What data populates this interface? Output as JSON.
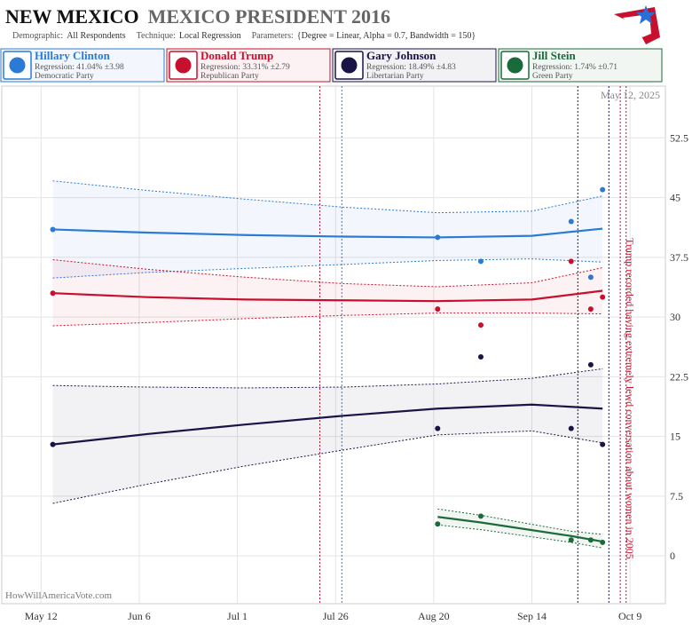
{
  "header": {
    "state": "NEW MEXICO",
    "title": "MEXICO PRESIDENT 2016",
    "params": [
      {
        "label": "Demographic:",
        "value": "All Respondents"
      },
      {
        "label": "Technique:",
        "value": "Local Regression"
      },
      {
        "label": "Parameters:",
        "value": "{Degree = Linear, Alpha = 0.7, Bandwidth = 150}"
      }
    ]
  },
  "chart_data": {
    "type": "scatter",
    "date_label": "May 12, 2025",
    "source": "HowWillAmericaVote.com",
    "annotation": "Trump recorded having extremely lewd conversation about women in 2005",
    "xlim": [
      123,
      292
    ],
    "xticks": [
      {
        "value": 133,
        "label": "May 12"
      },
      {
        "value": 158,
        "label": "Jun 6"
      },
      {
        "value": 183,
        "label": "Jul 1"
      },
      {
        "value": 208,
        "label": "Jul 26"
      },
      {
        "value": 233,
        "label": "Aug 20"
      },
      {
        "value": 258,
        "label": "Sep 14"
      },
      {
        "value": 283,
        "label": "Oct 9"
      }
    ],
    "ylim": [
      -6,
      59
    ],
    "yticks": [
      0,
      7.5,
      15,
      22.5,
      30,
      37.5,
      45,
      52.5
    ],
    "grid": true,
    "events": [
      {
        "x": 204,
        "color": "#c8102e"
      },
      {
        "x": 209.6,
        "color": "#2b7bd6"
      },
      {
        "x": 269.7,
        "color": "#1a1446"
      },
      {
        "x": 277.6,
        "color": "#1a1446"
      },
      {
        "x": 280.5,
        "color": "#c8102e"
      },
      {
        "x": 282,
        "color": "#c8102e"
      }
    ],
    "series": [
      {
        "name": "Hillary Clinton",
        "detail": "Regression: 41.04% ±3.98",
        "party": "Democratic Party",
        "color": "#2b7bd6",
        "x": [
          136,
          234,
          245,
          268,
          273,
          276
        ],
        "values": [
          41,
          40,
          37,
          42,
          35,
          46
        ],
        "trend_x": [
          136,
          160,
          185,
          210,
          234,
          258,
          276
        ],
        "trend": [
          41,
          40.6,
          40.3,
          40.1,
          40,
          40.2,
          41.1
        ],
        "trend_upper": [
          47.1,
          45.9,
          44.8,
          43.8,
          43.1,
          43.3,
          45.2
        ],
        "trend_lower": [
          34.9,
          35.6,
          36.1,
          36.6,
          37.1,
          37.3,
          36.9
        ]
      },
      {
        "name": "Donald Trump",
        "detail": "Regression: 33.31% ±2.79",
        "party": "Republican Party",
        "color": "#c8102e",
        "x": [
          136,
          234,
          245,
          268,
          273,
          276
        ],
        "values": [
          33,
          31,
          29,
          37,
          31,
          32.5
        ],
        "trend_x": [
          136,
          160,
          185,
          210,
          234,
          258,
          276
        ],
        "trend": [
          33,
          32.5,
          32.2,
          32.1,
          32,
          32.2,
          33.3
        ],
        "trend_upper": [
          37.2,
          36,
          35,
          34.2,
          33.8,
          34.3,
          36.2
        ],
        "trend_lower": [
          28.9,
          29.3,
          29.8,
          30.2,
          30.5,
          30.5,
          30.4
        ]
      },
      {
        "name": "Gary Johnson",
        "detail": "Regression: 18.49% ±4.83",
        "party": "Libertarian Party",
        "color": "#1a1446",
        "x": [
          136,
          234,
          245,
          268,
          273,
          276
        ],
        "values": [
          14,
          16,
          25,
          16,
          24,
          14
        ],
        "trend_x": [
          136,
          160,
          185,
          210,
          234,
          258,
          276
        ],
        "trend": [
          14,
          15.3,
          16.5,
          17.6,
          18.5,
          19,
          18.5
        ],
        "trend_upper": [
          21.4,
          21.2,
          21.1,
          21.2,
          21.6,
          22.3,
          23.5
        ],
        "trend_lower": [
          6.6,
          9,
          11.3,
          13.3,
          15.2,
          15.7,
          14.2
        ]
      },
      {
        "name": "Jill Stein",
        "detail": "Regression: 1.74% ±0.71",
        "party": "Green Party",
        "color": "#1a6b3a",
        "x": [
          234,
          245,
          268,
          273,
          276
        ],
        "values": [
          4,
          5,
          2,
          2,
          1.7
        ],
        "trend_x": [
          234,
          245,
          268,
          276
        ],
        "trend": [
          4.9,
          4.2,
          2.5,
          1.8
        ],
        "trend_upper": [
          5.9,
          5.1,
          3.1,
          2.7
        ],
        "trend_lower": [
          3.9,
          3.3,
          1.7,
          1.0
        ]
      }
    ]
  }
}
